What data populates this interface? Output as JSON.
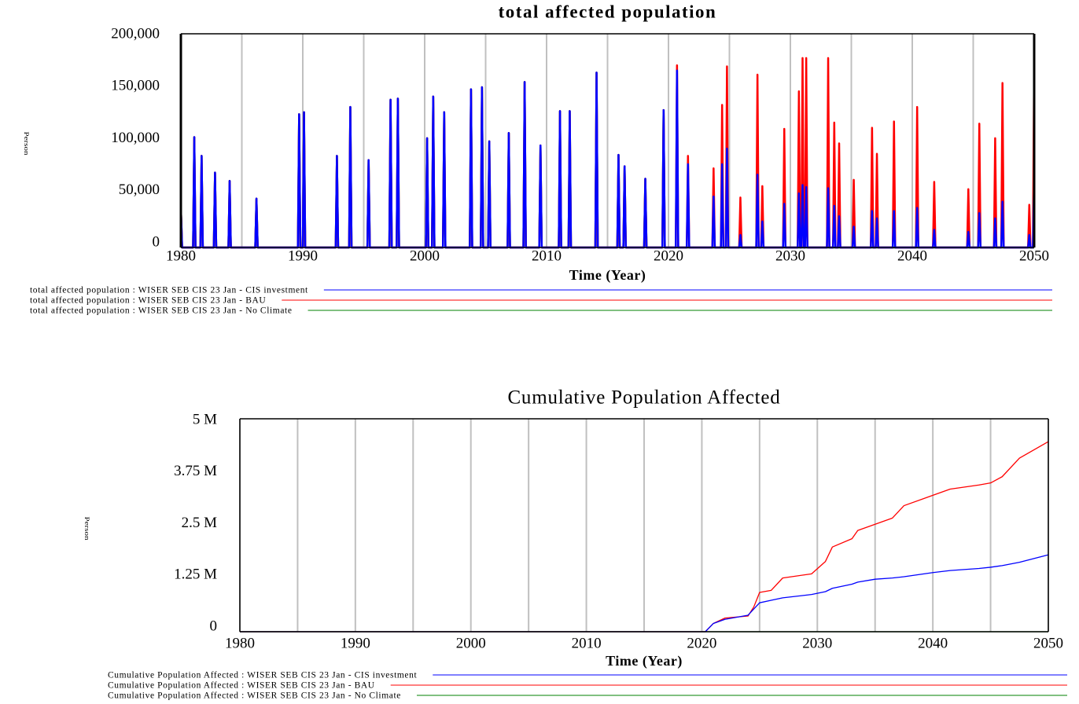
{
  "chart_data": [
    {
      "type": "line",
      "title": "total affected population",
      "xlabel": "Time (Year)",
      "ylabel": "Person",
      "x": [
        1980,
        1980.1,
        1981,
        1981.1,
        1981.2,
        1981.6,
        1981.7,
        1981.8,
        1982.7,
        1982.8,
        1982.9,
        1983.9,
        1984,
        1984.1,
        1986.1,
        1986.2,
        1986.3,
        1989.6,
        1989.7,
        1989.8,
        1990,
        1990.1,
        1990.2,
        1992.7,
        1992.8,
        1992.9,
        1993.8,
        1993.9,
        1994,
        1995.3,
        1995.4,
        1995.5,
        1997.1,
        1997.2,
        1997.3,
        1997.7,
        1997.8,
        1997.9,
        2000.1,
        2000.2,
        2000.3,
        2000.6,
        2000.7,
        2000.8,
        2001.5,
        2001.6,
        2001.7,
        2003.7,
        2003.8,
        2003.9,
        2004.6,
        2004.7,
        2004.8,
        2005.2,
        2005.3,
        2005.4,
        2006.8,
        2006.9,
        2007,
        2008.1,
        2008.2,
        2008.3,
        2009.4,
        2009.5,
        2009.6,
        2011,
        2011.1,
        2011.2,
        2011.8,
        2011.9,
        2012,
        2014,
        2014.1,
        2014.2,
        2015.8,
        2015.9,
        2016,
        2016.3,
        2016.4,
        2016.5,
        2018,
        2018.1,
        2018.2,
        2019.5,
        2019.6,
        2019.7,
        2020.6,
        2020.7,
        2020.8,
        2021.5,
        2021.6,
        2021.7,
        2023.6,
        2023.7,
        2023.8,
        2024.3,
        2024.4,
        2024.5,
        2024.7,
        2024.8,
        2024.9,
        2025.8,
        2025.9,
        2026,
        2027.2,
        2027.3,
        2027.4,
        2027.6,
        2027.7,
        2027.8,
        2029.4,
        2029.5,
        2029.6,
        2030.6,
        2030.7,
        2030.8,
        2030.9,
        2031,
        2031.1,
        2031.2,
        2031.3,
        2031.4,
        2033,
        2033.1,
        2033.2,
        2033.5,
        2033.6,
        2033.7,
        2033.9,
        2034,
        2034.1,
        2035.1,
        2035.2,
        2035.3,
        2036.6,
        2036.7,
        2036.8,
        2037,
        2037.1,
        2037.2,
        2038.4,
        2038.5,
        2038.6,
        2040.3,
        2040.4,
        2040.5,
        2041.7,
        2041.8,
        2041.9,
        2044.5,
        2044.6,
        2044.7,
        2045.4,
        2045.5,
        2045.6,
        2046.7,
        2046.8,
        2046.9,
        2047.3,
        2047.4,
        2047.5,
        2049.5,
        2049.6,
        2049.7,
        2049.9,
        2050
      ],
      "series": [
        {
          "name": "total affected population : WISER SEB CIS 23 Jan - CIS investment",
          "color": "#0000ff",
          "values": [
            38000,
            0,
            0,
            106000,
            0,
            0,
            88000,
            0,
            0,
            72000,
            0,
            0,
            64000,
            0,
            0,
            47000,
            0,
            0,
            128000,
            0,
            0,
            130000,
            0,
            0,
            88000,
            0,
            0,
            135000,
            0,
            0,
            84000,
            0,
            0,
            142000,
            0,
            0,
            143000,
            0,
            0,
            105000,
            0,
            0,
            145000,
            0,
            0,
            130000,
            0,
            0,
            152000,
            0,
            0,
            154000,
            0,
            0,
            102000,
            0,
            0,
            110000,
            0,
            0,
            159000,
            0,
            0,
            98000,
            0,
            0,
            131000,
            0,
            0,
            131000,
            0,
            0,
            168000,
            0,
            0,
            89000,
            0,
            0,
            78000,
            0,
            0,
            66000,
            0,
            0,
            132000,
            0,
            0,
            170000,
            0,
            0,
            80000,
            0,
            0,
            49000,
            0,
            0,
            80000,
            0,
            0,
            95000,
            0,
            0,
            12000,
            0,
            0,
            70000,
            0,
            0,
            25000,
            0,
            0,
            42000,
            0,
            0,
            52000,
            0,
            0,
            60000,
            0,
            0,
            58000,
            0,
            0,
            57000,
            0,
            0,
            40000,
            0,
            0,
            30000,
            0,
            0,
            20000,
            0,
            0,
            35000,
            0,
            0,
            28000,
            0,
            0,
            35000,
            0,
            0,
            38000,
            0,
            0,
            17000,
            0,
            0,
            15000,
            0,
            0,
            33000,
            0,
            0,
            28000,
            0,
            0,
            44000,
            0,
            0,
            12000,
            0,
            0,
            63000
          ]
        },
        {
          "name": "total affected population : WISER SEB CIS 23 Jan - BAU",
          "color": "#ff0000",
          "values": [
            38000,
            0,
            0,
            106000,
            0,
            0,
            88000,
            0,
            0,
            72000,
            0,
            0,
            64000,
            0,
            0,
            47000,
            0,
            0,
            128000,
            0,
            0,
            130000,
            0,
            0,
            88000,
            0,
            0,
            135000,
            0,
            0,
            84000,
            0,
            0,
            142000,
            0,
            0,
            143000,
            0,
            0,
            105000,
            0,
            0,
            145000,
            0,
            0,
            130000,
            0,
            0,
            152000,
            0,
            0,
            154000,
            0,
            0,
            102000,
            0,
            0,
            110000,
            0,
            0,
            159000,
            0,
            0,
            98000,
            0,
            0,
            131000,
            0,
            0,
            131000,
            0,
            0,
            168000,
            0,
            0,
            89000,
            0,
            0,
            78000,
            0,
            0,
            66000,
            0,
            0,
            132000,
            0,
            0,
            175000,
            0,
            0,
            88000,
            0,
            0,
            76000,
            0,
            0,
            137000,
            0,
            0,
            174000,
            0,
            0,
            48000,
            0,
            0,
            166000,
            0,
            0,
            59000,
            0,
            0,
            114000,
            0,
            0,
            150000,
            0,
            0,
            182000,
            0,
            0,
            182000,
            0,
            0,
            182000,
            0,
            0,
            120000,
            0,
            0,
            100000,
            0,
            0,
            65000,
            0,
            0,
            115000,
            0,
            0,
            90000,
            0,
            0,
            121000,
            0,
            0,
            135000,
            0,
            0,
            63000,
            0,
            0,
            56000,
            0,
            0,
            119000,
            0,
            0,
            105000,
            0,
            0,
            158000,
            0,
            0,
            41000,
            0,
            0,
            176000
          ]
        },
        {
          "name": "total affected population : WISER SEB CIS 23 Jan - No Climate",
          "color": "#008000",
          "values": [
            38000,
            0,
            0,
            106000,
            0,
            0,
            88000,
            0,
            0,
            72000,
            0,
            0,
            64000,
            0,
            0,
            47000,
            0,
            0,
            128000,
            0,
            0,
            130000,
            0,
            0,
            88000,
            0,
            0,
            135000,
            0,
            0,
            84000,
            0,
            0,
            142000,
            0,
            0,
            143000,
            0,
            0,
            105000,
            0,
            0,
            145000,
            0,
            0,
            130000,
            0,
            0,
            152000,
            0,
            0,
            154000,
            0,
            0,
            102000,
            0,
            0,
            110000,
            0,
            0,
            159000,
            0,
            0,
            98000,
            0,
            0,
            131000,
            0,
            0,
            131000,
            0,
            0,
            168000,
            0,
            0,
            89000,
            0,
            0,
            78000,
            0,
            0,
            66000,
            0,
            0,
            132000,
            0,
            0,
            0,
            0,
            0,
            0,
            0,
            0,
            0,
            0,
            0,
            0,
            0,
            0,
            0,
            0,
            0,
            0,
            0,
            0,
            0,
            0,
            0,
            0,
            0,
            0,
            0,
            0,
            0,
            0,
            0,
            0,
            0,
            0,
            0,
            0,
            0,
            0,
            0,
            0,
            0,
            0,
            0,
            0,
            0,
            0,
            0,
            0,
            0,
            0,
            0,
            0,
            0,
            0,
            0,
            0,
            0,
            0,
            0,
            0,
            0,
            0,
            0,
            0,
            0,
            0,
            0,
            0,
            0,
            0,
            0,
            0,
            0,
            0,
            0,
            0,
            0,
            0,
            0,
            0,
            0
          ]
        }
      ],
      "xlim": [
        1980,
        2050
      ],
      "xticks": [
        1980,
        1990,
        2000,
        2010,
        2020,
        2030,
        2040,
        2050
      ],
      "ylim": [
        0,
        200000
      ],
      "yticks": [
        0,
        {
          "value": 50000,
          "label": "50,000"
        },
        {
          "value": 100000,
          "label": "100,000"
        },
        {
          "value": 150000,
          "label": "150,000"
        },
        {
          "value": 200000,
          "label": "200,000"
        }
      ],
      "grid": "x"
    },
    {
      "type": "line",
      "title": "Cumulative Population Affected",
      "xlabel": "Time (Year)",
      "ylabel": "Person",
      "x": [
        1980,
        2020.3,
        2021,
        2022,
        2024,
        2024.5,
        2025,
        2026,
        2027,
        2029.5,
        2030.7,
        2031.3,
        2033,
        2033.5,
        2035,
        2036.5,
        2037.5,
        2040,
        2041.5,
        2044,
        2045,
        2046,
        2047.5,
        2050
      ],
      "series": [
        {
          "name": "Cumulative Population Affected : WISER SEB CIS 23 Jan - CIS investment",
          "color": "#0000ff",
          "values": [
            0,
            0,
            200000,
            300000,
            400000,
            550000,
            700000,
            760000,
            820000,
            900000,
            970000,
            1050000,
            1150000,
            1200000,
            1270000,
            1300000,
            1330000,
            1430000,
            1480000,
            1530000,
            1560000,
            1600000,
            1680000,
            1860000
          ]
        },
        {
          "name": "Cumulative Population Affected : WISER SEB CIS 23 Jan - BAU",
          "color": "#ff0000",
          "values": [
            0,
            0,
            200000,
            330000,
            380000,
            600000,
            950000,
            1000000,
            1300000,
            1400000,
            1700000,
            2050000,
            2250000,
            2450000,
            2600000,
            2750000,
            3050000,
            3300000,
            3450000,
            3550000,
            3600000,
            3750000,
            4200000,
            4600000
          ]
        },
        {
          "name": "Cumulative Population Affected : WISER SEB CIS 23 Jan - No Climate",
          "color": "#008000",
          "values": [
            0,
            0,
            0,
            0,
            0,
            0,
            0,
            0,
            0,
            0,
            0,
            0,
            0,
            0,
            0,
            0,
            0,
            0,
            0,
            0,
            0,
            0,
            0,
            0
          ]
        }
      ],
      "xlim": [
        1980,
        2050
      ],
      "xticks": [
        1980,
        1990,
        2000,
        2010,
        2020,
        2030,
        2040,
        2050
      ],
      "ylim": [
        0,
        5000000
      ],
      "yticks": [
        0,
        {
          "value": 1250000,
          "label": "1.25 M"
        },
        {
          "value": 2500000,
          "label": "2.5 M"
        },
        {
          "value": 3750000,
          "label": "3.75 M"
        },
        {
          "value": 5000000,
          "label": "5 M"
        }
      ],
      "grid": "x"
    }
  ]
}
